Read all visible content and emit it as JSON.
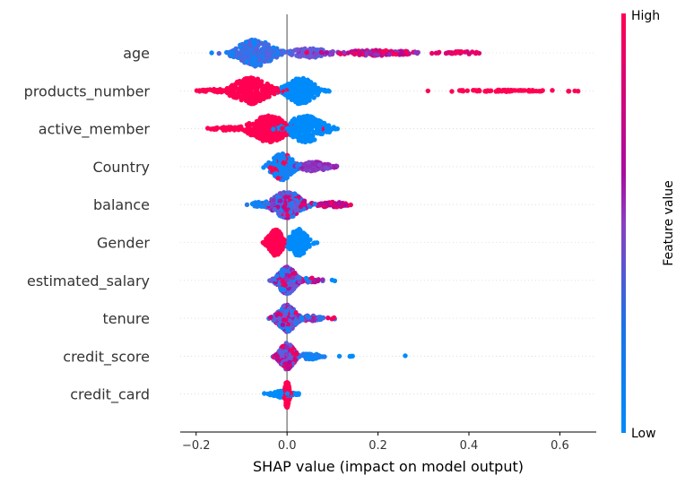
{
  "chart_data": {
    "type": "scatter",
    "subtype": "shap-beeswarm",
    "title": "",
    "xlabel": "SHAP value (impact on model output)",
    "ylabel": "",
    "xlim": [
      -0.235,
      0.68
    ],
    "xticks": [
      -0.2,
      0.0,
      0.2,
      0.4,
      0.6
    ],
    "xtick_labels": [
      "−0.2",
      "0.0",
      "0.2",
      "0.4",
      "0.6"
    ],
    "grid": "horizontal dotted per feature",
    "zero_line": true,
    "colorbar": {
      "label": "Feature value",
      "high_label": "High",
      "low_label": "Low",
      "high_color": "#ff0052",
      "mid_color": "#a90ba0",
      "low_color": "#008bfb",
      "placement": "right"
    },
    "features": [
      {
        "name": "age",
        "min": -0.18,
        "max": 0.43,
        "segments": [
          {
            "center": -0.07,
            "spread": 0.05,
            "count": 260,
            "height": 1.0,
            "value_range": [
              0.0,
              0.45
            ]
          },
          {
            "center": 0.05,
            "spread": 0.05,
            "count": 90,
            "height": 0.35,
            "value_range": [
              0.35,
              0.65
            ]
          },
          {
            "center": 0.2,
            "spread": 0.1,
            "count": 120,
            "height": 0.2,
            "value_range": [
              0.6,
              1.0
            ]
          },
          {
            "center": 0.38,
            "spread": 0.05,
            "count": 30,
            "height": 0.1,
            "value_range": [
              0.8,
              1.0
            ]
          }
        ]
      },
      {
        "name": "products_number",
        "min": -0.2,
        "max": 0.64,
        "segments": [
          {
            "center": -0.08,
            "spread": 0.05,
            "count": 260,
            "height": 1.0,
            "value_range": [
              1.0,
              1.0
            ]
          },
          {
            "center": -0.16,
            "spread": 0.03,
            "count": 30,
            "height": 0.12,
            "value_range": [
              1.0,
              1.0
            ]
          },
          {
            "center": 0.03,
            "spread": 0.04,
            "count": 240,
            "height": 1.0,
            "value_range": [
              0.0,
              0.0
            ]
          },
          {
            "center": 0.47,
            "spread": 0.11,
            "count": 70,
            "height": 0.06,
            "value_range": [
              1.0,
              1.0
            ]
          },
          {
            "center": 0.64,
            "spread": 0.0,
            "count": 1,
            "height": 0.0,
            "value_range": [
              1.0,
              1.0
            ]
          }
        ]
      },
      {
        "name": "active_member",
        "min": -0.18,
        "max": 0.18,
        "segments": [
          {
            "center": -0.04,
            "spread": 0.05,
            "count": 260,
            "height": 1.0,
            "value_range": [
              1.0,
              1.0
            ]
          },
          {
            "center": -0.13,
            "spread": 0.04,
            "count": 40,
            "height": 0.12,
            "value_range": [
              1.0,
              1.0
            ]
          },
          {
            "center": 0.04,
            "spread": 0.05,
            "count": 260,
            "height": 1.0,
            "value_range": [
              0.0,
              0.0
            ]
          }
        ]
      },
      {
        "name": "Country",
        "min": -0.08,
        "max": 0.14,
        "segments": [
          {
            "center": -0.01,
            "spread": 0.03,
            "count": 220,
            "height": 1.0,
            "value_range": [
              0.0,
              0.15
            ],
            "mix_high": 0.15
          },
          {
            "center": 0.06,
            "spread": 0.04,
            "count": 160,
            "height": 0.35,
            "value_range": [
              0.55,
              0.7
            ]
          }
        ]
      },
      {
        "name": "balance",
        "min": -0.1,
        "max": 0.18,
        "segments": [
          {
            "center": 0.0,
            "spread": 0.04,
            "count": 300,
            "height": 1.0,
            "value_range": [
              0.0,
              1.0
            ]
          },
          {
            "center": 0.1,
            "spread": 0.04,
            "count": 50,
            "height": 0.2,
            "value_range": [
              0.7,
              1.0
            ]
          },
          {
            "center": -0.06,
            "spread": 0.02,
            "count": 30,
            "height": 0.2,
            "value_range": [
              0.0,
              0.2
            ]
          }
        ]
      },
      {
        "name": "Gender",
        "min": -0.07,
        "max": 0.08,
        "segments": [
          {
            "center": -0.025,
            "spread": 0.02,
            "count": 220,
            "height": 1.0,
            "value_range": [
              1.0,
              1.0
            ]
          },
          {
            "center": 0.025,
            "spread": 0.025,
            "count": 220,
            "height": 1.0,
            "value_range": [
              0.0,
              0.0
            ]
          }
        ]
      },
      {
        "name": "estimated_salary",
        "min": -0.05,
        "max": 0.11,
        "segments": [
          {
            "center": 0.0,
            "spread": 0.025,
            "count": 320,
            "height": 1.0,
            "value_range": [
              0.0,
              1.0
            ]
          },
          {
            "center": 0.05,
            "spread": 0.02,
            "count": 30,
            "height": 0.2,
            "value_range": [
              0.0,
              1.0
            ]
          },
          {
            "center": 0.1,
            "spread": 0.01,
            "count": 2,
            "height": 0.0,
            "value_range": [
              0.0,
              0.0
            ]
          }
        ]
      },
      {
        "name": "tenure",
        "min": -0.06,
        "max": 0.11,
        "segments": [
          {
            "center": 0.0,
            "spread": 0.025,
            "count": 320,
            "height": 1.0,
            "value_range": [
              0.0,
              1.0
            ]
          },
          {
            "center": 0.05,
            "spread": 0.03,
            "count": 40,
            "height": 0.2,
            "value_range": [
              0.0,
              1.0
            ]
          },
          {
            "center": 0.1,
            "spread": 0.01,
            "count": 3,
            "height": 0.0,
            "value_range": [
              0.0,
              1.0
            ]
          }
        ]
      },
      {
        "name": "credit_score",
        "min": -0.04,
        "max": 0.26,
        "segments": [
          {
            "center": 0.0,
            "spread": 0.02,
            "count": 300,
            "height": 1.0,
            "value_range": [
              0.3,
              1.0
            ]
          },
          {
            "center": 0.05,
            "spread": 0.025,
            "count": 50,
            "height": 0.25,
            "value_range": [
              0.0,
              0.2
            ]
          },
          {
            "center": 0.13,
            "spread": 0.03,
            "count": 5,
            "height": 0.0,
            "value_range": [
              0.0,
              0.0
            ]
          },
          {
            "center": 0.26,
            "spread": 0.0,
            "count": 1,
            "height": 0.0,
            "value_range": [
              0.0,
              0.0
            ]
          }
        ]
      },
      {
        "name": "credit_card",
        "min": -0.06,
        "max": 0.03,
        "segments": [
          {
            "center": -0.01,
            "spread": 0.025,
            "count": 120,
            "height": 0.25,
            "value_range": [
              0.0,
              0.0
            ]
          },
          {
            "center": 0.0,
            "spread": 0.006,
            "count": 220,
            "height": 1.0,
            "value_range": [
              1.0,
              1.0
            ]
          }
        ]
      }
    ]
  }
}
